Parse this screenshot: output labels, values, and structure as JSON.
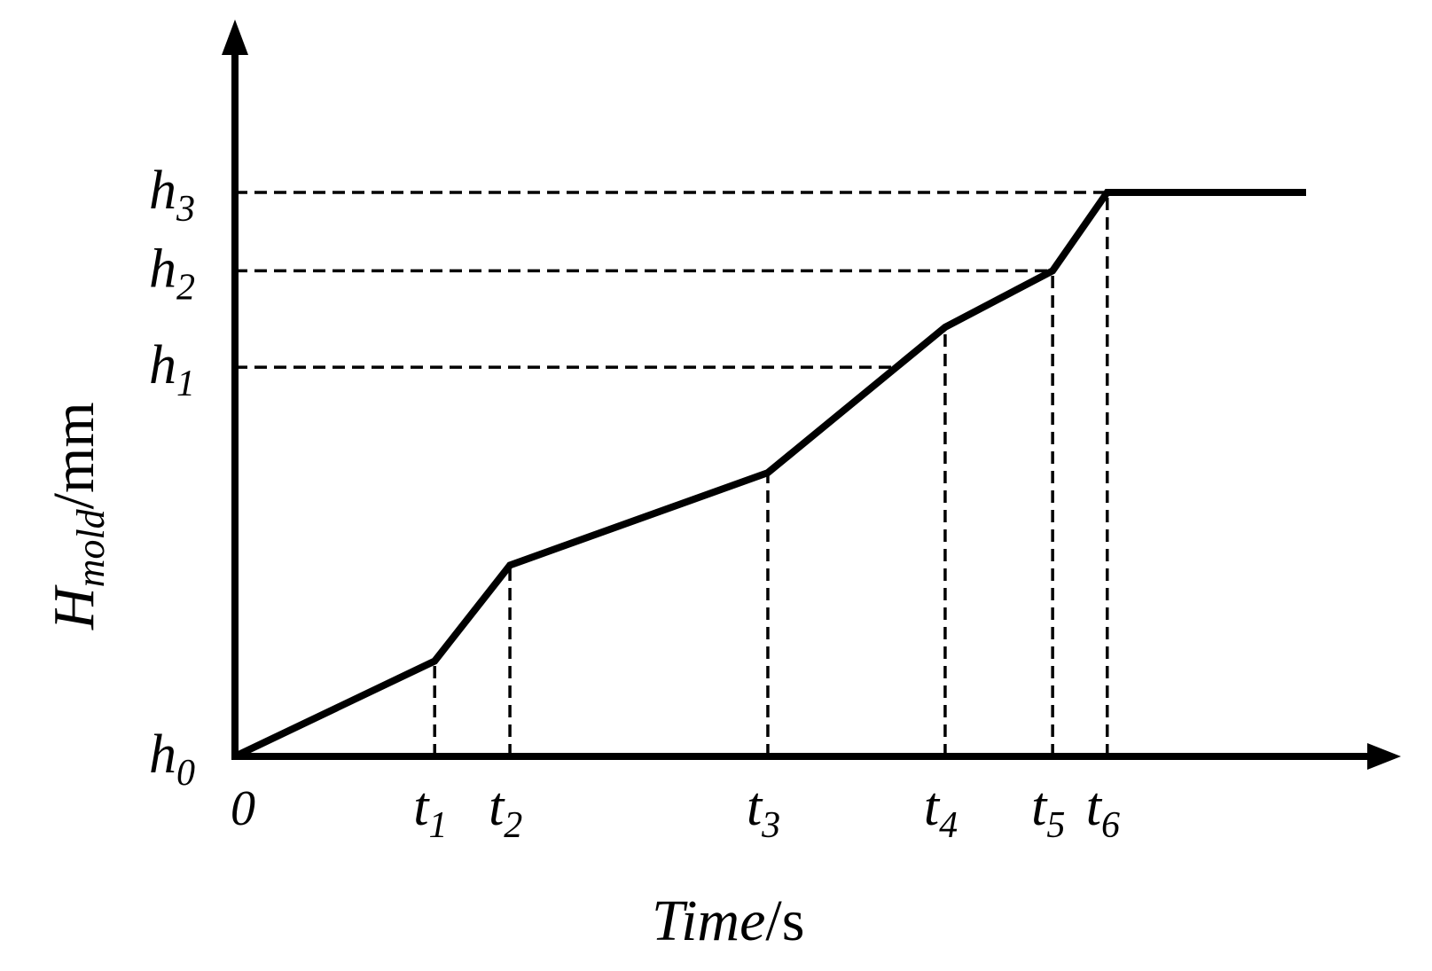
{
  "chart_data": {
    "type": "line",
    "title": "",
    "xlabel": {
      "main": "Time",
      "unit": "/s"
    },
    "ylabel": {
      "main": "H",
      "subscript": "mold",
      "unit": "/mm"
    },
    "x_ticks": [
      {
        "label": "t",
        "sub": "1",
        "value": 0.223
      },
      {
        "label": "t",
        "sub": "2",
        "value": 0.307
      },
      {
        "label": "t",
        "sub": "3",
        "value": 0.595
      },
      {
        "label": "t",
        "sub": "4",
        "value": 0.793
      },
      {
        "label": "t",
        "sub": "5",
        "value": 0.913
      },
      {
        "label": "t",
        "sub": "6",
        "value": 0.974
      }
    ],
    "y_ticks": [
      {
        "label": "h",
        "sub": "0",
        "value": 0
      },
      {
        "label": "h",
        "sub": "1",
        "value": 0.69
      },
      {
        "label": "h",
        "sub": "2",
        "value": 0.861
      },
      {
        "label": "h",
        "sub": "3",
        "value": 1.0
      }
    ],
    "origin_label": "0",
    "x": [
      0,
      0.223,
      0.307,
      0.595,
      0.793,
      0.913,
      0.974,
      1.196
    ],
    "values": [
      0,
      0.169,
      0.339,
      0.503,
      0.761,
      0.861,
      1.0,
      1.0
    ],
    "xlim": [
      0,
      1.27
    ],
    "ylim": [
      0,
      1.0
    ],
    "grid": false,
    "legend": "none"
  }
}
